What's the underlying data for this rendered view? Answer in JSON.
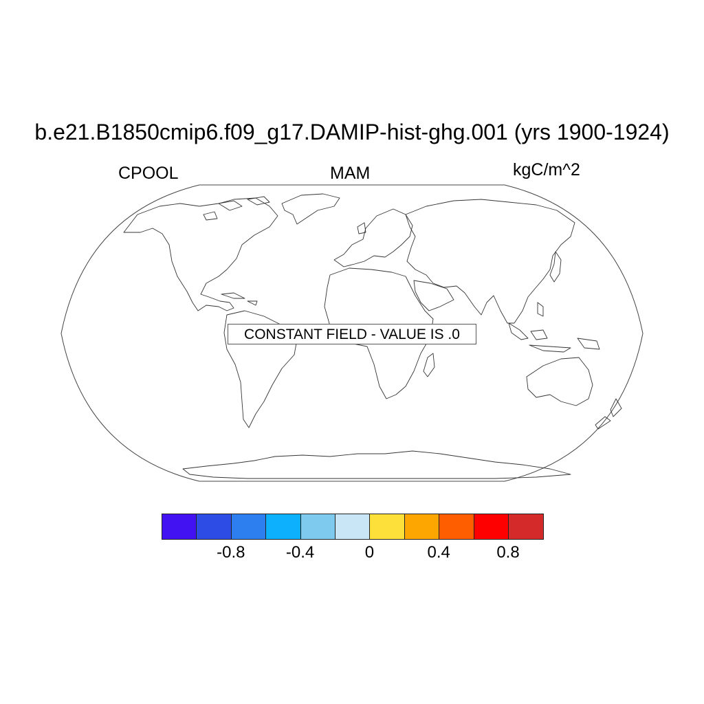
{
  "title": "b.e21.B1850cmip6.f09_g17.DAMIP-hist-ghg.001 (yrs 1900-1924)",
  "left_label": "CPOOL",
  "center_label": "MAM",
  "right_label": "kgC/m^2",
  "notice": "CONSTANT FIELD - VALUE IS .0",
  "colorbar": {
    "colors": [
      "#4312f2",
      "#2d4be5",
      "#2d7fef",
      "#0db0fc",
      "#7ec9ee",
      "#c9e6f6",
      "#fde13a",
      "#fda500",
      "#fe5e00",
      "#fe0000",
      "#d42a2a"
    ],
    "ticks": [
      {
        "label": "-0.8"
      },
      {
        "label": "-0.4"
      },
      {
        "label": "0"
      },
      {
        "label": "0.4"
      },
      {
        "label": "0.8"
      }
    ]
  }
}
